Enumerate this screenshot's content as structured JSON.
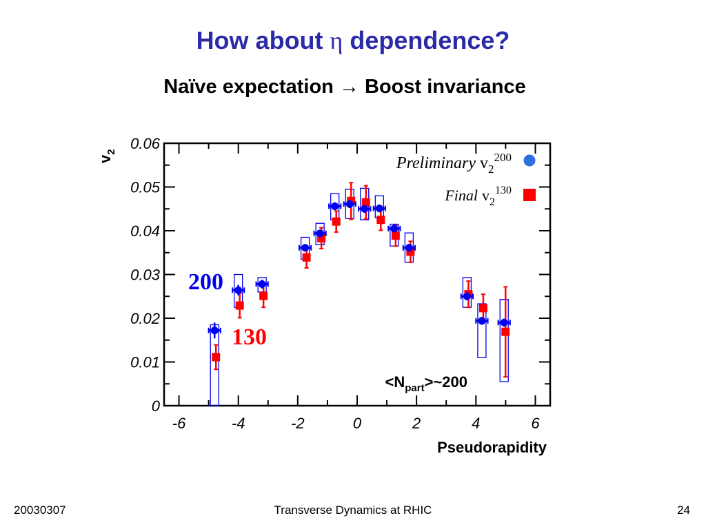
{
  "slide": {
    "title_pre": "How about ",
    "title_symbol": "η",
    "title_post": " dependence?",
    "subtitle_pre": "Naïve expectation ",
    "subtitle_arrow": "→",
    "subtitle_post": " Boost invariance",
    "footer_left": "20030307",
    "footer_center": "Transverse Dynamics at RHIC",
    "footer_right": "24"
  },
  "chart_data": {
    "type": "scatter",
    "xlabel": "Pseudorapidity",
    "ylabel_base": "v",
    "ylabel_sub": "2",
    "xlim": [
      -6.5,
      6.5
    ],
    "ylim": [
      0,
      0.06
    ],
    "xticks": [
      "-6",
      "-4",
      "-2",
      "0",
      "2",
      "4",
      "6"
    ],
    "yticks": [
      "0",
      "0.01",
      "0.02",
      "0.03",
      "0.04",
      "0.05",
      "0.06"
    ],
    "annotations": {
      "label_200": "200",
      "label_130": "130",
      "npart_open": "<N",
      "npart_sub": "part",
      "npart_close": ">~200"
    },
    "legend": {
      "position": "top-right",
      "entries": [
        {
          "italic": "Preliminary",
          "base": "v",
          "sub": "2",
          "sup": "200",
          "marker": "circle",
          "color": "#2f6fe0"
        },
        {
          "italic": "Final",
          "base": "v",
          "sub": "2",
          "sup": "130",
          "marker": "square",
          "color": "#ff0000"
        }
      ]
    },
    "series": [
      {
        "name": "v2 200 (Preliminary)",
        "color": "#0000ee",
        "marker": "circle",
        "x_error": 0.2,
        "points": [
          {
            "x": -4.8,
            "y": 0.0172,
            "err": 0.0018,
            "sys": [
              0,
              0.0185
            ]
          },
          {
            "x": -4.0,
            "y": 0.0264,
            "err": 0.0012,
            "sys": [
              0.0225,
              0.03
            ]
          },
          {
            "x": -3.2,
            "y": 0.0278,
            "err": 0.001,
            "sys": [
              0.026,
              0.0293
            ]
          },
          {
            "x": -1.75,
            "y": 0.0361,
            "err": 0.0008,
            "sys": [
              0.0335,
              0.0385
            ]
          },
          {
            "x": -1.25,
            "y": 0.0394,
            "err": 0.0008,
            "sys": [
              0.0368,
              0.0417
            ]
          },
          {
            "x": -0.75,
            "y": 0.0456,
            "err": 0.0009,
            "sys": [
              0.0425,
              0.0485
            ]
          },
          {
            "x": -0.25,
            "y": 0.0461,
            "err": 0.0009,
            "sys": [
              0.0428,
              0.0495
            ]
          },
          {
            "x": 0.25,
            "y": 0.045,
            "err": 0.0009,
            "sys": [
              0.0425,
              0.0497
            ]
          },
          {
            "x": 0.75,
            "y": 0.0451,
            "err": 0.0009,
            "sys": [
              0.043,
              0.048
            ]
          },
          {
            "x": 1.25,
            "y": 0.0405,
            "err": 0.0009,
            "sys": [
              0.0365,
              0.0415
            ]
          },
          {
            "x": 1.75,
            "y": 0.0361,
            "err": 0.0009,
            "sys": [
              0.0328,
              0.0395
            ]
          },
          {
            "x": 3.7,
            "y": 0.025,
            "err": 0.0009,
            "sys": [
              0.0225,
              0.0293
            ]
          },
          {
            "x": 4.2,
            "y": 0.0194,
            "err": 0.0009,
            "sys": [
              0.011,
              0.0233
            ]
          },
          {
            "x": 4.95,
            "y": 0.019,
            "err": 0.0009,
            "sys": [
              0.0055,
              0.0243
            ]
          }
        ]
      },
      {
        "name": "v2 130 (Final)",
        "color": "#ff0000",
        "marker": "square",
        "points": [
          {
            "x": -4.8,
            "y": 0.0111,
            "err": 0.0028
          },
          {
            "x": -4.0,
            "y": 0.0229,
            "err": 0.0028
          },
          {
            "x": -3.2,
            "y": 0.0251,
            "err": 0.0026
          },
          {
            "x": -1.75,
            "y": 0.0339,
            "err": 0.0024
          },
          {
            "x": -1.25,
            "y": 0.0383,
            "err": 0.0024
          },
          {
            "x": -0.75,
            "y": 0.0421,
            "err": 0.0024
          },
          {
            "x": -0.25,
            "y": 0.0468,
            "err": 0.0042
          },
          {
            "x": 0.25,
            "y": 0.0465,
            "err": 0.0038
          },
          {
            "x": 0.75,
            "y": 0.0425,
            "err": 0.0024
          },
          {
            "x": 1.25,
            "y": 0.0389,
            "err": 0.0024
          },
          {
            "x": 1.75,
            "y": 0.0352,
            "err": 0.0024
          },
          {
            "x": 3.7,
            "y": 0.0255,
            "err": 0.003
          },
          {
            "x": 4.2,
            "y": 0.0223,
            "err": 0.0032
          },
          {
            "x": 4.95,
            "y": 0.0169,
            "err": 0.0103
          }
        ]
      }
    ]
  }
}
